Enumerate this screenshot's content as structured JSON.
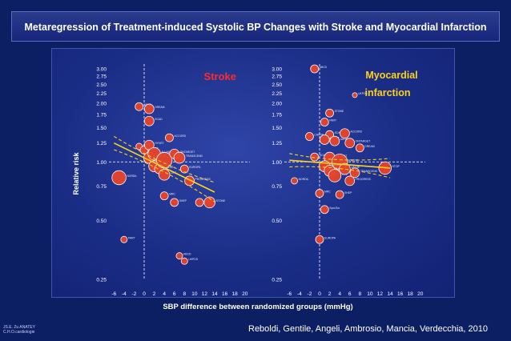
{
  "title": "Metaregression of Treatment-induced Systolic BP Changes with Stroke and Myocardial Infarction",
  "citation": "Reboldi, Gentile, Angeli, Ambrosio, Mancia, Verdecchia, 2010",
  "credit": [
    "JS.E. Zu ANATEY",
    "C.H.O.cardiologie"
  ],
  "colors": {
    "background": "#0d1f63",
    "marker": "#e8442a",
    "marker_edge": "#ffffff",
    "regression_line": "#ffd21a",
    "axis_text": "#ffffff",
    "stroke_title": "#ff2a2a",
    "mi_title": "#ffd21a"
  },
  "chart_data": [
    {
      "type": "scatter",
      "panel_title": "Stroke",
      "xlabel": "SBP difference between randomized groups (mmHg)",
      "ylabel": "Relative risk",
      "yscale": "log",
      "xlim": [
        -7,
        21
      ],
      "ylim": [
        0.25,
        3.0
      ],
      "x_ticks": [
        "-6",
        "-4",
        "-2",
        "0",
        "2",
        "4",
        "6",
        "8",
        "10",
        "12",
        "14",
        "16",
        "18",
        "20"
      ],
      "y_ticks": [
        "3.00",
        "2.75",
        "2.50",
        "2.25",
        "2.00",
        "1.75",
        "1.50",
        "1.25",
        "1.00",
        "0.75",
        "0.50",
        "0.25"
      ],
      "reference_lines": {
        "x": 0,
        "y": 1.0
      },
      "regression_line": {
        "x": [
          -6,
          14
        ],
        "y": [
          1.25,
          0.7
        ]
      },
      "points": [
        {
          "x": -5,
          "y": 0.83,
          "s": 8,
          "label": "NORDIL"
        },
        {
          "x": -1,
          "y": 1.92,
          "s": 4,
          "label": "SCAT"
        },
        {
          "x": 1,
          "y": 1.87,
          "s": 5,
          "label": "DREAM"
        },
        {
          "x": 1,
          "y": 1.62,
          "s": 5,
          "label": "SCAD"
        },
        {
          "x": -4,
          "y": 0.4,
          "s": 3,
          "label": "PART"
        },
        {
          "x": -1,
          "y": 1.2,
          "s": 3,
          "label": "AASK"
        },
        {
          "x": 0,
          "y": 1.15,
          "s": 4,
          "label": "CAPPP"
        },
        {
          "x": 1,
          "y": 1.22,
          "s": 5,
          "label": "HYVET"
        },
        {
          "x": 1,
          "y": 1.05,
          "s": 6,
          "label": "INSIGHT"
        },
        {
          "x": 2,
          "y": 1.1,
          "s": 7,
          "label": "ALLHAT"
        },
        {
          "x": 2,
          "y": 0.95,
          "s": 6,
          "label": "STOP-2"
        },
        {
          "x": 3,
          "y": 0.92,
          "s": 5,
          "label": "VALUE"
        },
        {
          "x": 4,
          "y": 1.02,
          "s": 9,
          "label": "ASCOT"
        },
        {
          "x": 4,
          "y": 0.86,
          "s": 6,
          "label": "LIFE"
        },
        {
          "x": 5,
          "y": 1.33,
          "s": 4,
          "label": "ACCORD"
        },
        {
          "x": 6,
          "y": 1.1,
          "s": 5,
          "label": "ONTARGET"
        },
        {
          "x": 7,
          "y": 1.05,
          "s": 6,
          "label": "TRANSCEND"
        },
        {
          "x": 8,
          "y": 0.92,
          "s": 4,
          "label": "EUROPA"
        },
        {
          "x": 9,
          "y": 0.8,
          "s": 5,
          "label": "PROGRESS"
        },
        {
          "x": 4,
          "y": 0.67,
          "s": 4,
          "label": "MRC"
        },
        {
          "x": 6,
          "y": 0.62,
          "s": 4,
          "label": "SHEP"
        },
        {
          "x": 11,
          "y": 0.62,
          "s": 4,
          "label": "Syst-Eur"
        },
        {
          "x": 13,
          "y": 0.62,
          "s": 6,
          "label": "STONE"
        },
        {
          "x": 7,
          "y": 0.33,
          "s": 3,
          "label": "ABCD"
        },
        {
          "x": 8,
          "y": 0.31,
          "s": 3,
          "label": "UKPDS"
        }
      ]
    },
    {
      "type": "scatter",
      "panel_title": "Myocardial infarction",
      "xlabel": "SBP difference between randomized groups (mmHg)",
      "ylabel": "Relative risk",
      "yscale": "log",
      "xlim": [
        -7,
        21
      ],
      "ylim": [
        0.25,
        3.0
      ],
      "x_ticks": [
        "-6",
        "-4",
        "-2",
        "0",
        "2",
        "4",
        "6",
        "8",
        "10",
        "12",
        "14",
        "16",
        "18",
        "20"
      ],
      "y_ticks": [
        "3.00",
        "2.75",
        "2.50",
        "2.25",
        "2.00",
        "1.75",
        "1.50",
        "1.25",
        "1.00",
        "0.75",
        "0.50",
        "0.25"
      ],
      "reference_lines": {
        "x": 0,
        "y": 1.0
      },
      "regression_line": {
        "x": [
          -6,
          14
        ],
        "y": [
          1.02,
          0.93
        ]
      },
      "points": [
        {
          "x": -1,
          "y": 3.0,
          "s": 4,
          "label": "ABCD"
        },
        {
          "x": 7,
          "y": 2.2,
          "s": 2,
          "label": "UKPDS"
        },
        {
          "x": 2,
          "y": 1.78,
          "s": 4,
          "label": "STONE"
        },
        {
          "x": 1,
          "y": 1.6,
          "s": 4,
          "label": "PART"
        },
        {
          "x": 2,
          "y": 1.38,
          "s": 4,
          "label": "SCAT"
        },
        {
          "x": 5,
          "y": 1.4,
          "s": 5,
          "label": "ACCORD"
        },
        {
          "x": -2,
          "y": 1.35,
          "s": 4,
          "label": "CAPPP"
        },
        {
          "x": 1,
          "y": 1.3,
          "s": 5,
          "label": "HYVET"
        },
        {
          "x": 3,
          "y": 1.28,
          "s": 5,
          "label": "AASK"
        },
        {
          "x": 6,
          "y": 1.25,
          "s": 5,
          "label": "ONTARGET"
        },
        {
          "x": 8,
          "y": 1.18,
          "s": 4,
          "label": "DREAM"
        },
        {
          "x": -1,
          "y": 1.06,
          "s": 4,
          "label": "SCAD"
        },
        {
          "x": 2,
          "y": 1.05,
          "s": 6,
          "label": "INSIGHT"
        },
        {
          "x": 4,
          "y": 1.0,
          "s": 9,
          "label": "ASCOT"
        },
        {
          "x": 1,
          "y": 0.95,
          "s": 6,
          "label": "ALLHAT"
        },
        {
          "x": 2,
          "y": 0.9,
          "s": 6,
          "label": "STOP-2"
        },
        {
          "x": 3,
          "y": 0.85,
          "s": 7,
          "label": "LIFE"
        },
        {
          "x": 5,
          "y": 0.92,
          "s": 6,
          "label": "VALUE"
        },
        {
          "x": 6,
          "y": 0.8,
          "s": 5,
          "label": "PROGRESS"
        },
        {
          "x": 7,
          "y": 0.88,
          "s": 5,
          "label": "TRANSCEND"
        },
        {
          "x": 13,
          "y": 0.93,
          "s": 7,
          "label": "STOP"
        },
        {
          "x": -5,
          "y": 0.8,
          "s": 3,
          "label": "NORDIL"
        },
        {
          "x": 0,
          "y": 0.69,
          "s": 4,
          "label": "MRC"
        },
        {
          "x": 4,
          "y": 0.68,
          "s": 4,
          "label": "SHEP"
        },
        {
          "x": 1,
          "y": 0.57,
          "s": 4,
          "label": "Syst-Eur"
        },
        {
          "x": 0,
          "y": 0.4,
          "s": 4,
          "label": "EUROPA"
        }
      ]
    }
  ]
}
